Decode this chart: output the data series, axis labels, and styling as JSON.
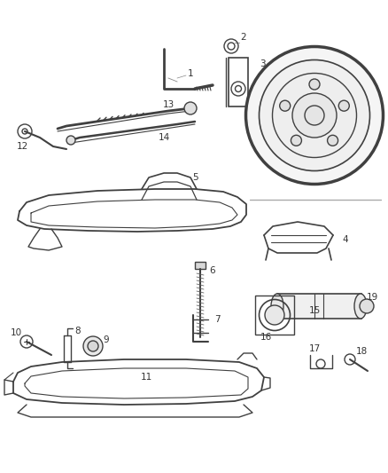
{
  "background_color": "#ffffff",
  "line_color": "#404040",
  "label_color": "#333333",
  "label_fontsize": 7.5,
  "line_width": 1.0,
  "fig_width": 4.38,
  "fig_height": 5.33,
  "dpi": 100
}
